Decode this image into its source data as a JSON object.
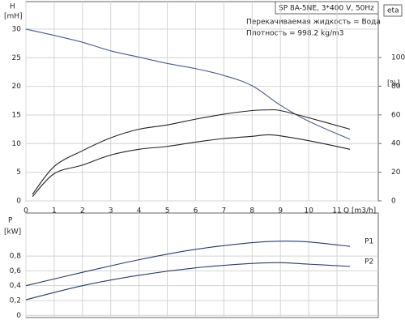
{
  "chart_data": [
    {
      "type": "line",
      "title": "SP 8A-5NE, 3*400 V, 50Hz",
      "annotations": [
        "Перекачиваемая жидкость = Вода",
        "Плотность = 998.2 kg/m3"
      ],
      "y_label": "H",
      "y_unit": "[mH]",
      "y2_label": "eta",
      "y2_unit": "[%]",
      "x_label": "Q [m3/h]",
      "xlim": [
        0,
        12.46
      ],
      "xticks": [
        0,
        1,
        2,
        3,
        4,
        5,
        6,
        7,
        8,
        9,
        10,
        11
      ],
      "ylim": [
        0,
        34.8
      ],
      "yticks": [
        0,
        5,
        10,
        15,
        20,
        25,
        30
      ],
      "y2lim": [
        0,
        139
      ],
      "y2ticks": [
        0,
        20,
        40,
        60,
        80,
        100
      ],
      "grid": true,
      "series": [
        {
          "color": "#4a5a8f",
          "x": [
            0,
            1,
            2,
            3,
            4,
            5,
            6,
            7,
            8,
            9,
            10,
            11.46
          ],
          "values": [
            30,
            28.9,
            27.7,
            26.2,
            25.1,
            24,
            23.1,
            21.9,
            20.1,
            16.7,
            13.9,
            10.75
          ]
        },
        {
          "color": "#222222",
          "axis": "y2",
          "x": [
            0.23,
            1,
            2,
            3,
            4,
            5,
            6,
            7,
            8,
            8.6,
            9,
            10,
            11.46
          ],
          "values": [
            4.5,
            24,
            35,
            44,
            50,
            53,
            57,
            60.5,
            63,
            63.5,
            63,
            58,
            50
          ]
        },
        {
          "color": "#222222",
          "axis": "y2",
          "x": [
            0.23,
            1,
            2,
            3,
            4,
            5,
            6,
            7,
            8,
            8.7,
            10,
            11.46
          ],
          "values": [
            3,
            19,
            25,
            32,
            36,
            38,
            41,
            43.5,
            45,
            46,
            42,
            36
          ]
        }
      ]
    },
    {
      "type": "line",
      "y_label": "P",
      "y_unit": "[kW]",
      "xlim": [
        0,
        12.46
      ],
      "xticks": [
        0,
        1,
        2,
        3,
        4,
        5,
        6,
        7,
        8,
        9,
        10,
        11
      ],
      "ylim": [
        -0.03,
        1.38
      ],
      "yticks": [
        0,
        {
          "value": 0.2,
          "label": "0,2"
        },
        {
          "value": 0.4,
          "label": "0,4"
        },
        {
          "value": 0.6,
          "label": "0,6"
        },
        {
          "value": 0.8,
          "label": "0,8"
        }
      ],
      "grid": true,
      "series": [
        {
          "name": "P1",
          "color": "#2a3a6a",
          "x": [
            0,
            2,
            4,
            6,
            8,
            9,
            10,
            11.46
          ],
          "values": [
            0.4,
            0.58,
            0.75,
            0.89,
            0.98,
            1.0,
            0.99,
            0.93
          ]
        },
        {
          "name": "P2",
          "color": "#2a3a6a",
          "x": [
            0,
            2,
            4,
            6,
            8,
            9,
            10,
            11.46
          ],
          "values": [
            0.21,
            0.4,
            0.54,
            0.64,
            0.7,
            0.71,
            0.69,
            0.66
          ]
        }
      ]
    }
  ]
}
